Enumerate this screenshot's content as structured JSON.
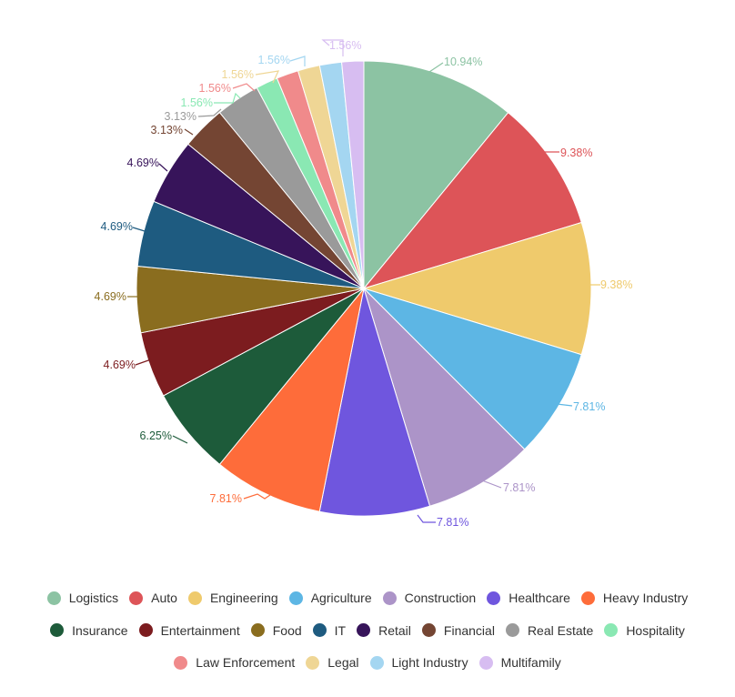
{
  "chart_data": {
    "type": "pie",
    "slices": [
      {
        "label": "Logistics",
        "value": 10.94,
        "color": "#8cc3a3",
        "text": "10.94%"
      },
      {
        "label": "Auto",
        "value": 9.38,
        "color": "#dd5458",
        "text": "9.38%"
      },
      {
        "label": "Engineering",
        "value": 9.38,
        "color": "#efca6c",
        "text": "9.38%"
      },
      {
        "label": "Agriculture",
        "value": 7.81,
        "color": "#5db6e4",
        "text": "7.81%"
      },
      {
        "label": "Construction",
        "value": 7.81,
        "color": "#ac94c8",
        "text": "7.81%"
      },
      {
        "label": "Healthcare",
        "value": 7.81,
        "color": "#6f56de",
        "text": "7.81%"
      },
      {
        "label": "Heavy Industry",
        "value": 7.81,
        "color": "#fe6c3a",
        "text": "7.81%"
      },
      {
        "label": "Insurance",
        "value": 6.25,
        "color": "#1d5b3a",
        "text": "6.25%"
      },
      {
        "label": "Entertainment",
        "value": 4.69,
        "color": "#7c1c1f",
        "text": "4.69%"
      },
      {
        "label": "Food",
        "value": 4.69,
        "color": "#8a6d1f",
        "text": "4.69%"
      },
      {
        "label": "IT",
        "value": 4.69,
        "color": "#1e5b80",
        "text": "4.69%"
      },
      {
        "label": "Retail",
        "value": 4.69,
        "color": "#37145a",
        "text": "4.69%"
      },
      {
        "label": "Financial",
        "value": 3.13,
        "color": "#744533",
        "text": "3.13%"
      },
      {
        "label": "Real Estate",
        "value": 3.13,
        "color": "#9a9a9a",
        "text": "3.13%"
      },
      {
        "label": "Hospitality",
        "value": 1.56,
        "color": "#8ae8b3",
        "text": "1.56%"
      },
      {
        "label": "Law Enforcement",
        "value": 1.56,
        "color": "#f08a8b",
        "text": "1.56%"
      },
      {
        "label": "Legal",
        "value": 1.56,
        "color": "#efd695",
        "text": "1.56%"
      },
      {
        "label": "Light Industry",
        "value": 1.56,
        "color": "#a4d6f1",
        "text": "1.56%"
      },
      {
        "label": "Multifamily",
        "value": 1.56,
        "color": "#d7bdf1",
        "text": "1.56%"
      }
    ],
    "legend_position": "bottom",
    "legend_rows": [
      [
        "Logistics",
        "Auto",
        "Engineering",
        "Agriculture",
        "Construction",
        "Healthcare",
        "Heavy Industry"
      ],
      [
        "Insurance",
        "Entertainment",
        "Food",
        "IT",
        "Retail",
        "Financial",
        "Real Estate",
        "Hospitality"
      ],
      [
        "Law Enforcement",
        "Legal",
        "Light Industry",
        "Multifamily"
      ]
    ]
  }
}
